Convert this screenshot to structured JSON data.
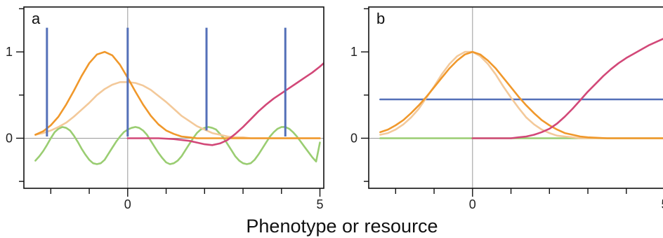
{
  "xlabel": "Phenotype or resource",
  "colors": {
    "blue": "#5470b8",
    "orange": "#f0982b",
    "light_orange": "#f3c99a",
    "pink": "#d24878",
    "green": "#9acd72"
  },
  "chart_data": [
    {
      "type": "line",
      "panel_label": "a",
      "xlim": [
        -2.7,
        5.1
      ],
      "ylim": [
        -0.58,
        1.52
      ],
      "x_ticks": [
        0,
        5
      ],
      "y_ticks": [
        0,
        1
      ],
      "grid": false,
      "series": [
        {
          "color_key": "green",
          "x": [
            -2.4,
            -2.3,
            -2.2,
            -2.1,
            -2.0,
            -1.9,
            -1.8,
            -1.7,
            -1.6,
            -1.5,
            -1.4,
            -1.3,
            -1.2,
            -1.1,
            -1.0,
            -0.9,
            -0.8,
            -0.7,
            -0.6,
            -0.5,
            -0.4,
            -0.3,
            -0.2,
            -0.1,
            0.0,
            0.1,
            0.2,
            0.3,
            0.4,
            0.5,
            0.6,
            0.7,
            0.8,
            0.9,
            1.0,
            1.1,
            1.2,
            1.3,
            1.4,
            1.5,
            1.6,
            1.7,
            1.8,
            1.9,
            2.0,
            2.1,
            2.2,
            2.3,
            2.4,
            2.5,
            2.6,
            2.7,
            2.8,
            2.9,
            3.0,
            3.1,
            3.2,
            3.3,
            3.4,
            3.5,
            3.6,
            3.7,
            3.8,
            3.9,
            4.0,
            4.1,
            4.2,
            4.3,
            4.4,
            4.5,
            4.6,
            4.7,
            4.8,
            4.9,
            5.0
          ],
          "y": [
            -0.26,
            -0.21,
            -0.15,
            -0.08,
            0.0,
            0.07,
            0.11,
            0.13,
            0.12,
            0.09,
            0.03,
            -0.04,
            -0.12,
            -0.19,
            -0.25,
            -0.29,
            -0.3,
            -0.29,
            -0.25,
            -0.18,
            -0.11,
            -0.04,
            0.02,
            0.07,
            0.1,
            0.12,
            0.13,
            0.12,
            0.09,
            0.04,
            -0.03,
            -0.1,
            -0.17,
            -0.23,
            -0.28,
            -0.3,
            -0.29,
            -0.26,
            -0.21,
            -0.14,
            -0.07,
            0.0,
            0.06,
            0.1,
            0.12,
            0.13,
            0.12,
            0.1,
            0.05,
            0.0,
            -0.07,
            -0.14,
            -0.21,
            -0.26,
            -0.29,
            -0.3,
            -0.29,
            -0.25,
            -0.19,
            -0.12,
            -0.05,
            0.02,
            0.07,
            0.11,
            0.13,
            0.13,
            0.11,
            0.07,
            0.02,
            -0.04,
            -0.1,
            -0.16,
            -0.22,
            -0.27,
            -0.05
          ]
        },
        {
          "color_key": "light_orange",
          "x": [
            -2.4,
            -2.2,
            -2.0,
            -1.8,
            -1.6,
            -1.4,
            -1.2,
            -1.0,
            -0.8,
            -0.6,
            -0.4,
            -0.2,
            0.0,
            0.2,
            0.4,
            0.6,
            0.8,
            1.0,
            1.2,
            1.4,
            1.6,
            1.8,
            2.0,
            2.2,
            2.4,
            2.6,
            2.8,
            3.0,
            3.2,
            3.4,
            3.6,
            3.8,
            4.0,
            4.2,
            4.4,
            4.6,
            4.8,
            5.0
          ],
          "y": [
            0.04,
            0.06,
            0.09,
            0.13,
            0.18,
            0.25,
            0.33,
            0.41,
            0.5,
            0.57,
            0.62,
            0.65,
            0.65,
            0.64,
            0.61,
            0.56,
            0.49,
            0.42,
            0.34,
            0.26,
            0.2,
            0.14,
            0.1,
            0.06,
            0.04,
            0.02,
            0.01,
            0.01,
            0.0,
            0.0,
            0.0,
            0.0,
            0.0,
            0.0,
            0.0,
            0.0,
            0.0,
            0.0
          ]
        },
        {
          "color_key": "orange",
          "x": [
            -2.4,
            -2.2,
            -2.0,
            -1.8,
            -1.6,
            -1.4,
            -1.2,
            -1.0,
            -0.8,
            -0.6,
            -0.4,
            -0.2,
            0.0,
            0.2,
            0.4,
            0.6,
            0.8,
            1.0,
            1.2,
            1.4,
            1.6,
            1.8,
            2.0,
            2.2,
            2.4,
            2.6,
            2.8,
            3.0,
            3.2,
            3.4,
            3.6,
            3.8,
            4.0,
            4.2,
            4.4,
            4.6,
            4.8,
            5.0
          ],
          "y": [
            0.04,
            0.08,
            0.15,
            0.25,
            0.39,
            0.55,
            0.72,
            0.87,
            0.97,
            1.0,
            0.96,
            0.85,
            0.7,
            0.54,
            0.39,
            0.26,
            0.16,
            0.09,
            0.05,
            0.02,
            0.01,
            0.0,
            0.0,
            0.0,
            0.0,
            0.0,
            0.0,
            0.0,
            0.0,
            0.0,
            0.0,
            0.0,
            0.0,
            0.0,
            0.0,
            0.0,
            0.0,
            0.0
          ]
        },
        {
          "color_key": "pink",
          "x": [
            0.0,
            0.4,
            0.8,
            1.2,
            1.6,
            1.8,
            2.0,
            2.2,
            2.4,
            2.6,
            2.8,
            3.0,
            3.2,
            3.4,
            3.6,
            3.8,
            4.0,
            4.2,
            4.4,
            4.6,
            4.8,
            5.0,
            5.1
          ],
          "y": [
            0.0,
            0.0,
            0.0,
            -0.01,
            -0.03,
            -0.05,
            -0.07,
            -0.08,
            -0.06,
            -0.02,
            0.05,
            0.13,
            0.22,
            0.31,
            0.39,
            0.46,
            0.52,
            0.58,
            0.64,
            0.7,
            0.76,
            0.83,
            0.87
          ]
        }
      ],
      "spikes": {
        "color_key": "blue",
        "x": [
          -2.1,
          0.0,
          2.05,
          4.1
        ],
        "y_bottom": [
          0.02,
          0.02,
          0.09,
          0.02
        ],
        "y_top": 1.28
      }
    },
    {
      "type": "line",
      "panel_label": "b",
      "xlim": [
        -2.7,
        5.1
      ],
      "ylim": [
        -0.58,
        1.52
      ],
      "x_ticks": [
        0,
        5
      ],
      "y_ticks": [
        0,
        1
      ],
      "grid": false,
      "series": [
        {
          "color_key": "blue",
          "x": [
            -2.4,
            5.0
          ],
          "y": [
            0.45,
            0.45
          ]
        },
        {
          "color_key": "green",
          "x": [
            -2.4,
            5.0
          ],
          "y": [
            0.0,
            0.0
          ]
        },
        {
          "color_key": "light_orange",
          "x": [
            -2.4,
            -2.2,
            -2.0,
            -1.8,
            -1.6,
            -1.4,
            -1.2,
            -1.0,
            -0.8,
            -0.6,
            -0.4,
            -0.2,
            0.0,
            0.2,
            0.4,
            0.6,
            0.8,
            1.0,
            1.2,
            1.4,
            1.6,
            1.8,
            2.0,
            2.2,
            2.4,
            2.6,
            2.8,
            3.0,
            3.5,
            4.0,
            5.0
          ],
          "y": [
            0.04,
            0.06,
            0.1,
            0.16,
            0.24,
            0.34,
            0.47,
            0.6,
            0.74,
            0.86,
            0.95,
            1.0,
            1.0,
            0.95,
            0.86,
            0.74,
            0.6,
            0.47,
            0.35,
            0.24,
            0.16,
            0.1,
            0.06,
            0.03,
            0.02,
            0.01,
            0.0,
            0.0,
            0.0,
            0.0,
            0.0
          ]
        },
        {
          "color_key": "orange",
          "x": [
            -2.4,
            -2.2,
            -2.0,
            -1.8,
            -1.6,
            -1.4,
            -1.2,
            -1.0,
            -0.8,
            -0.6,
            -0.4,
            -0.2,
            0.0,
            0.2,
            0.4,
            0.6,
            0.8,
            1.0,
            1.2,
            1.4,
            1.6,
            1.8,
            2.0,
            2.2,
            2.4,
            2.6,
            2.8,
            3.0,
            3.5,
            4.0,
            5.0
          ],
          "y": [
            0.07,
            0.1,
            0.15,
            0.21,
            0.29,
            0.38,
            0.48,
            0.59,
            0.7,
            0.81,
            0.9,
            0.97,
            1.0,
            0.97,
            0.9,
            0.81,
            0.7,
            0.59,
            0.48,
            0.38,
            0.29,
            0.21,
            0.15,
            0.1,
            0.06,
            0.04,
            0.02,
            0.01,
            0.0,
            0.0,
            0.0
          ]
        },
        {
          "color_key": "pink",
          "x": [
            0.0,
            0.5,
            1.0,
            1.2,
            1.4,
            1.6,
            1.8,
            2.0,
            2.2,
            2.4,
            2.6,
            2.8,
            3.0,
            3.2,
            3.4,
            3.6,
            3.8,
            4.0,
            4.2,
            4.4,
            4.6,
            4.8,
            5.0,
            5.1
          ],
          "y": [
            0.0,
            0.0,
            0.0,
            0.01,
            0.02,
            0.04,
            0.07,
            0.11,
            0.17,
            0.25,
            0.34,
            0.44,
            0.54,
            0.63,
            0.72,
            0.8,
            0.87,
            0.93,
            0.98,
            1.03,
            1.08,
            1.12,
            1.16,
            1.18
          ]
        }
      ]
    }
  ]
}
